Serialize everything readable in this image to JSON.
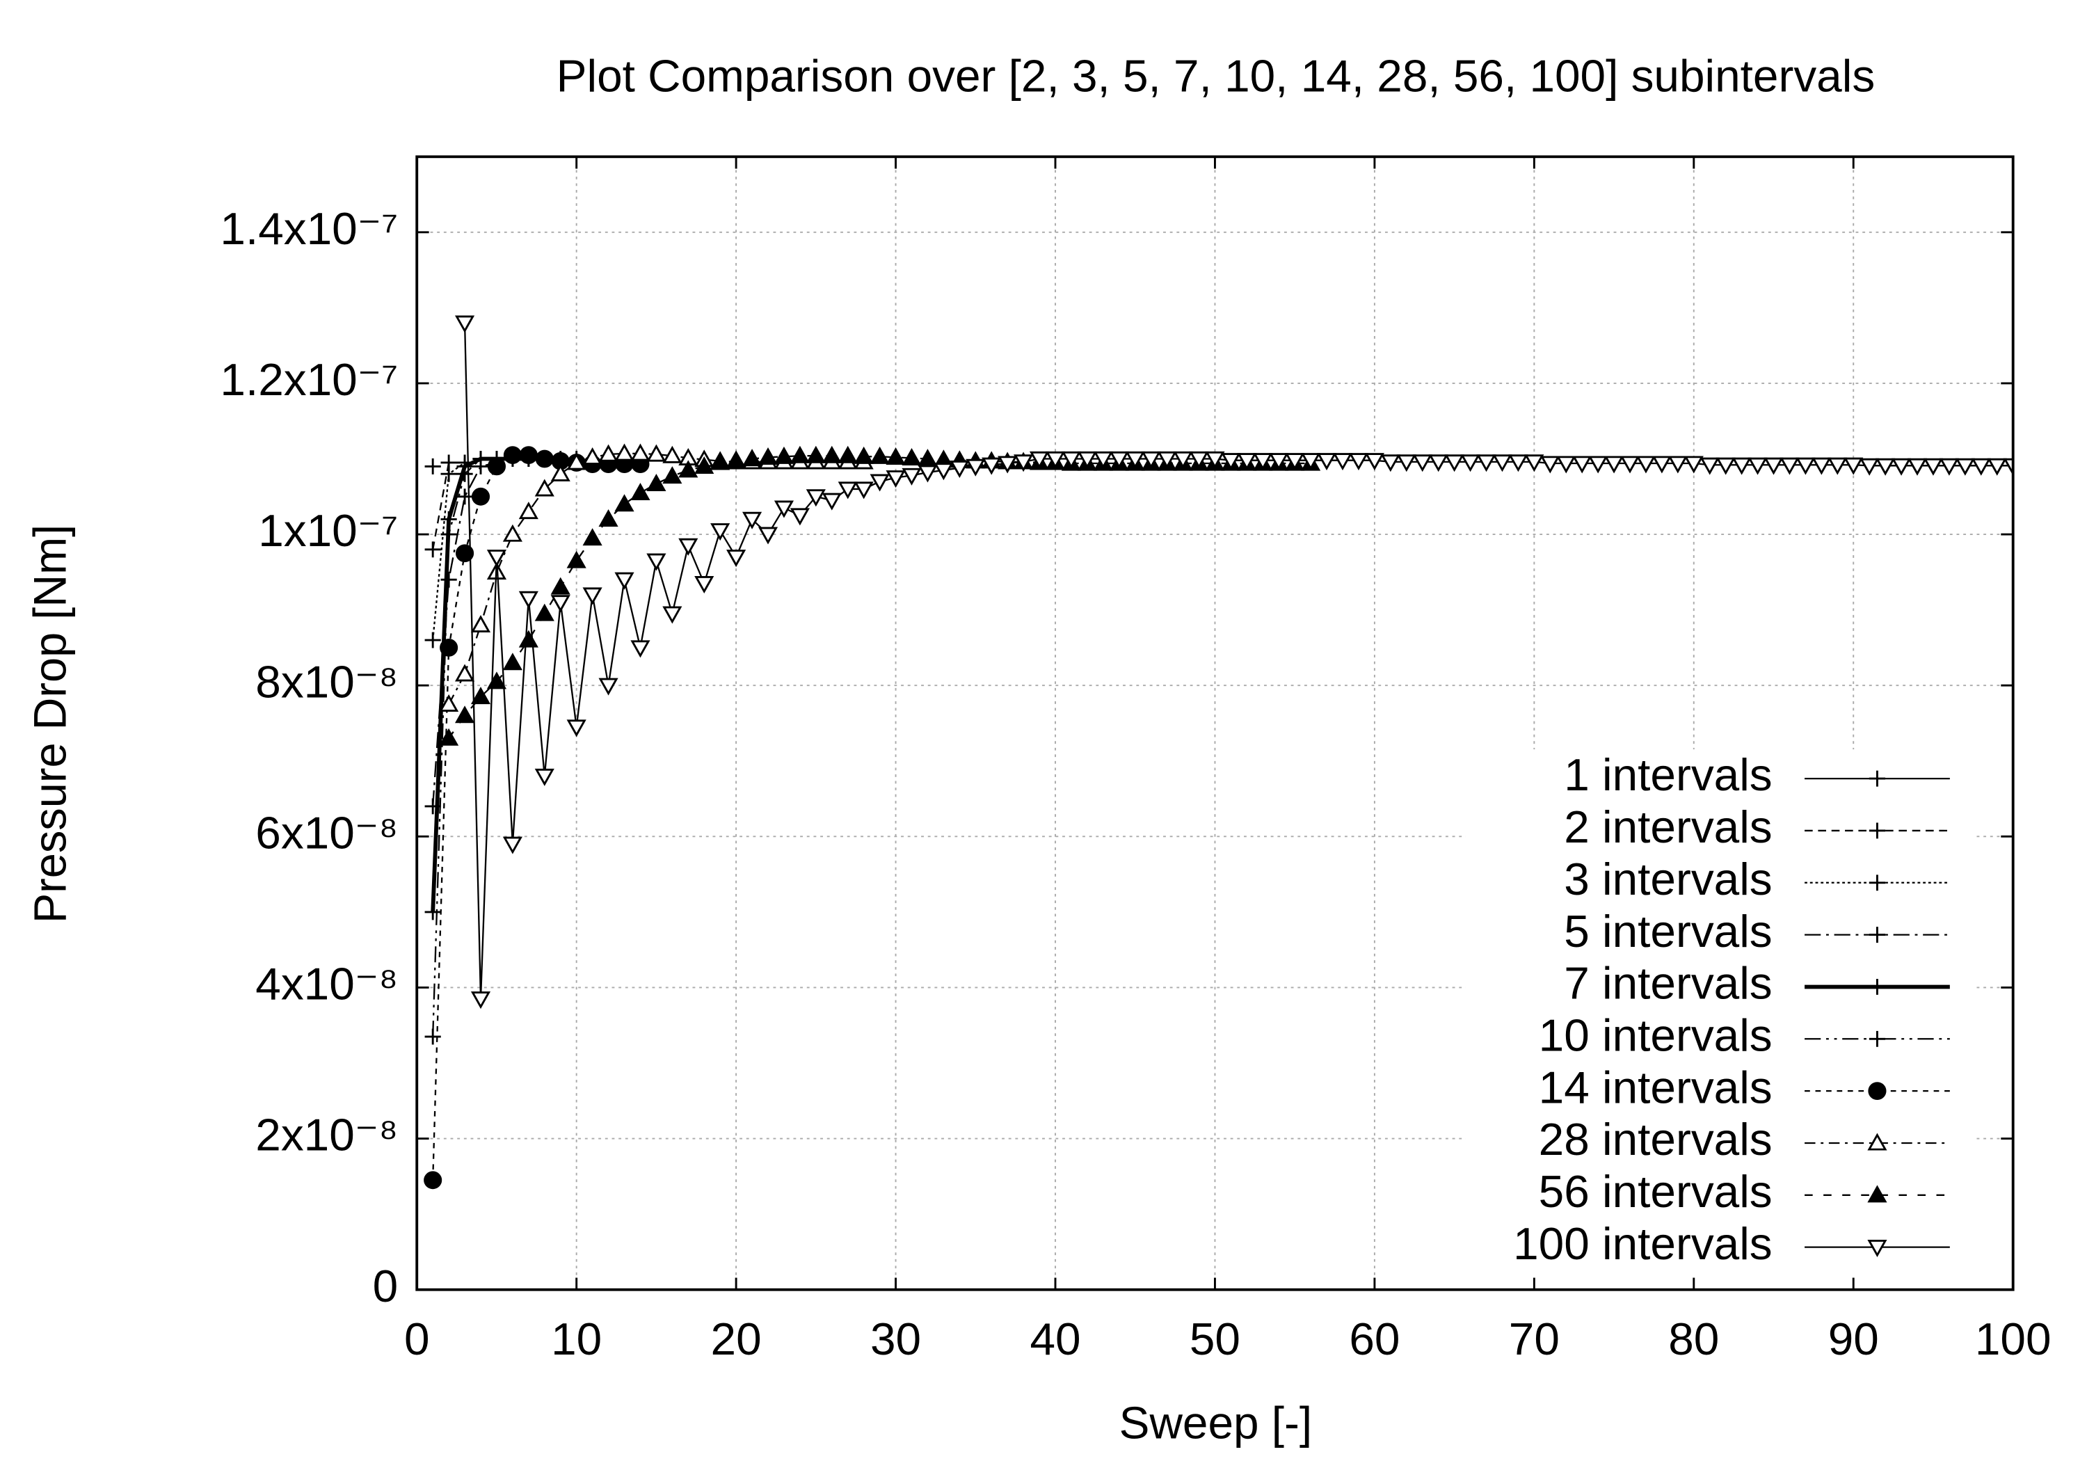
{
  "chart_data": {
    "type": "line",
    "title": "Plot Comparison over [2, 3, 5, 7, 10, 14, 28, 56, 100] subintervals",
    "x_label": "Sweep [-]",
    "y_label": "Pressure Drop [Nm]",
    "xlim": [
      0,
      100
    ],
    "xticks": [
      0,
      10,
      20,
      30,
      40,
      50,
      60,
      70,
      80,
      90,
      100
    ],
    "ylim": [
      0,
      1.5e-07
    ],
    "yticks": [
      0,
      {
        "value": 2e-08,
        "label": "2x10⁻⁸"
      },
      {
        "value": 4e-08,
        "label": "4x10⁻⁸"
      },
      {
        "value": 6e-08,
        "label": "6x10⁻⁸"
      },
      {
        "value": 8e-08,
        "label": "8x10⁻⁸"
      },
      {
        "value": 1e-07,
        "label": "1x10⁻⁷"
      },
      {
        "value": 1.2e-07,
        "label": "1.2x10⁻⁷"
      },
      {
        "value": 1.4e-07,
        "label": "1.4x10⁻⁷"
      }
    ],
    "grid": true,
    "legend": "bottom-right",
    "series": [
      {
        "name": "1 intervals",
        "color": "#000000",
        "dash": "none",
        "width": 1.2,
        "marker": "plus",
        "x": [
          1
        ],
        "values": [
          1.09e-07
        ]
      },
      {
        "name": "2 intervals",
        "color": "#000000",
        "dash": "6,4",
        "width": 1.2,
        "marker": "plus",
        "x": [
          1,
          2
        ],
        "values": [
          9.8e-08,
          1.095e-07
        ]
      },
      {
        "name": "3 intervals",
        "color": "#000000",
        "dash": "2,2",
        "width": 1.2,
        "marker": "plus",
        "x": [
          1,
          2,
          3
        ],
        "values": [
          8.6e-08,
          1.08e-07,
          1.095e-07
        ]
      },
      {
        "name": "5 intervals",
        "color": "#000000",
        "dash": "12,4,2,4",
        "width": 1.2,
        "marker": "plus",
        "x": [
          1,
          2,
          3,
          4,
          5
        ],
        "values": [
          6.4e-08,
          9.4e-08,
          1.05e-07,
          1.09e-07,
          1.095e-07
        ]
      },
      {
        "name": "7 intervals",
        "color": "#000000",
        "dash": "none",
        "width": 3,
        "marker": "plus",
        "x": [
          1,
          2,
          3,
          4,
          5,
          6,
          7
        ],
        "values": [
          5e-08,
          1.02e-07,
          1.09e-07,
          1.1e-07,
          1.1e-07,
          1.1e-07,
          1.1e-07
        ]
      },
      {
        "name": "10 intervals",
        "color": "#000000",
        "dash": "12,4,2,4,2,4",
        "width": 1.2,
        "marker": "plus",
        "x": [
          1,
          2,
          3,
          4,
          5,
          6,
          7,
          8,
          9,
          10
        ],
        "values": [
          3.35e-08,
          1e-07,
          1.08e-07,
          1.1e-07,
          1.1e-07,
          1.1e-07,
          1.1e-07,
          1.1e-07,
          1.1e-07,
          1.1e-07
        ]
      },
      {
        "name": "14 intervals",
        "color": "#000000",
        "dash": "4,4",
        "width": 1.2,
        "marker": "circle",
        "x": [
          1,
          2,
          3,
          4,
          5,
          6,
          7,
          8,
          9,
          10,
          11,
          12,
          13,
          14
        ],
        "values": [
          1.45e-08,
          8.5e-08,
          9.75e-08,
          1.05e-07,
          1.09e-07,
          1.105e-07,
          1.105e-07,
          1.1e-07,
          1.097e-07,
          1.095e-07,
          1.093e-07,
          1.093e-07,
          1.093e-07,
          1.093e-07
        ]
      },
      {
        "name": "28 intervals",
        "color": "#000000",
        "dash": "8,4,2,4",
        "width": 1.2,
        "marker": "triangle-open",
        "x": [
          2,
          3,
          4,
          5,
          6,
          7,
          8,
          9,
          10,
          11,
          12,
          13,
          14,
          15,
          16,
          17,
          18,
          19,
          20,
          21,
          22,
          23,
          24,
          25,
          26,
          27,
          28
        ],
        "values": [
          7.75e-08,
          8.15e-08,
          8.8e-08,
          9.5e-08,
          1e-07,
          1.03e-07,
          1.06e-07,
          1.08e-07,
          1.095e-07,
          1.102e-07,
          1.106e-07,
          1.107e-07,
          1.107e-07,
          1.106e-07,
          1.104e-07,
          1.101e-07,
          1.099e-07,
          1.097e-07,
          1.096e-07,
          1.096e-07,
          1.096e-07,
          1.096e-07,
          1.096e-07,
          1.096e-07,
          1.096e-07,
          1.096e-07,
          1.096e-07
        ]
      },
      {
        "name": "56 intervals",
        "color": "#000000",
        "dash": "6,8",
        "width": 1.2,
        "marker": "triangle",
        "x": [
          2,
          3,
          4,
          5,
          6,
          7,
          8,
          9,
          10,
          11,
          12,
          13,
          14,
          15,
          16,
          17,
          18,
          19,
          20,
          21,
          22,
          23,
          24,
          25,
          26,
          27,
          28,
          29,
          30,
          31,
          32,
          33,
          34,
          35,
          36,
          37,
          38,
          39,
          40,
          41,
          42,
          43,
          44,
          45,
          46,
          47,
          48,
          49,
          50,
          51,
          52,
          53,
          54,
          55,
          56
        ],
        "values": [
          7.3e-08,
          7.6e-08,
          7.85e-08,
          8.05e-08,
          8.3e-08,
          8.6e-08,
          8.95e-08,
          9.3e-08,
          9.65e-08,
          9.95e-08,
          1.02e-07,
          1.04e-07,
          1.055e-07,
          1.067e-07,
          1.077e-07,
          1.085e-07,
          1.09e-07,
          1.095e-07,
          1.098e-07,
          1.1e-07,
          1.102e-07,
          1.103e-07,
          1.104e-07,
          1.104e-07,
          1.104e-07,
          1.104e-07,
          1.103e-07,
          1.103e-07,
          1.102e-07,
          1.101e-07,
          1.1e-07,
          1.099e-07,
          1.098e-07,
          1.097e-07,
          1.097e-07,
          1.096e-07,
          1.096e-07,
          1.095e-07,
          1.095e-07,
          1.094e-07,
          1.094e-07,
          1.094e-07,
          1.094e-07,
          1.094e-07,
          1.094e-07,
          1.094e-07,
          1.094e-07,
          1.094e-07,
          1.094e-07,
          1.094e-07,
          1.094e-07,
          1.094e-07,
          1.094e-07,
          1.094e-07,
          1.094e-07
        ]
      },
      {
        "name": "100 intervals",
        "color": "#000000",
        "dash": "none",
        "width": 1.2,
        "marker": "triangle-down-open",
        "x": [
          3,
          4,
          5,
          6,
          7,
          8,
          9,
          10,
          11,
          12,
          13,
          14,
          15,
          16,
          17,
          18,
          19,
          20,
          21,
          22,
          23,
          24,
          25,
          26,
          27,
          28,
          29,
          30,
          31,
          32,
          33,
          34,
          35,
          36,
          37,
          38,
          39,
          40,
          41,
          42,
          43,
          44,
          45,
          46,
          47,
          48,
          49,
          50,
          51,
          52,
          53,
          54,
          55,
          56,
          57,
          58,
          59,
          60,
          61,
          62,
          63,
          64,
          65,
          66,
          67,
          68,
          69,
          70,
          71,
          72,
          73,
          74,
          75,
          76,
          77,
          78,
          79,
          80,
          81,
          82,
          83,
          84,
          85,
          86,
          87,
          88,
          89,
          90,
          91,
          92,
          93,
          94,
          95,
          96,
          97,
          98,
          99,
          100
        ],
        "values": [
          1.28e-07,
          3.85e-08,
          9.7e-08,
          5.9e-08,
          9.15e-08,
          6.8e-08,
          9.1e-08,
          7.45e-08,
          9.2e-08,
          8e-08,
          9.4e-08,
          8.5e-08,
          9.65e-08,
          8.95e-08,
          9.85e-08,
          9.35e-08,
          1.005e-07,
          9.7e-08,
          1.02e-07,
          1e-07,
          1.035e-07,
          1.025e-07,
          1.05e-07,
          1.045e-07,
          1.06e-07,
          1.06e-07,
          1.07e-07,
          1.075e-07,
          1.078e-07,
          1.082e-07,
          1.085e-07,
          1.088e-07,
          1.09e-07,
          1.092e-07,
          1.094e-07,
          1.096e-07,
          1.1e-07,
          1.1e-07,
          1.1e-07,
          1.1e-07,
          1.1e-07,
          1.1e-07,
          1.1e-07,
          1.1e-07,
          1.1e-07,
          1.1e-07,
          1.1e-07,
          1.1e-07,
          1.098e-07,
          1.098e-07,
          1.098e-07,
          1.098e-07,
          1.098e-07,
          1.098e-07,
          1.098e-07,
          1.098e-07,
          1.098e-07,
          1.098e-07,
          1.096e-07,
          1.096e-07,
          1.096e-07,
          1.096e-07,
          1.096e-07,
          1.096e-07,
          1.096e-07,
          1.096e-07,
          1.096e-07,
          1.096e-07,
          1.094e-07,
          1.094e-07,
          1.094e-07,
          1.094e-07,
          1.094e-07,
          1.094e-07,
          1.094e-07,
          1.094e-07,
          1.094e-07,
          1.094e-07,
          1.092e-07,
          1.092e-07,
          1.092e-07,
          1.092e-07,
          1.092e-07,
          1.092e-07,
          1.092e-07,
          1.092e-07,
          1.092e-07,
          1.092e-07,
          1.091e-07,
          1.091e-07,
          1.091e-07,
          1.091e-07,
          1.091e-07,
          1.091e-07,
          1.091e-07,
          1.091e-07,
          1.091e-07,
          1.091e-07
        ]
      }
    ]
  }
}
